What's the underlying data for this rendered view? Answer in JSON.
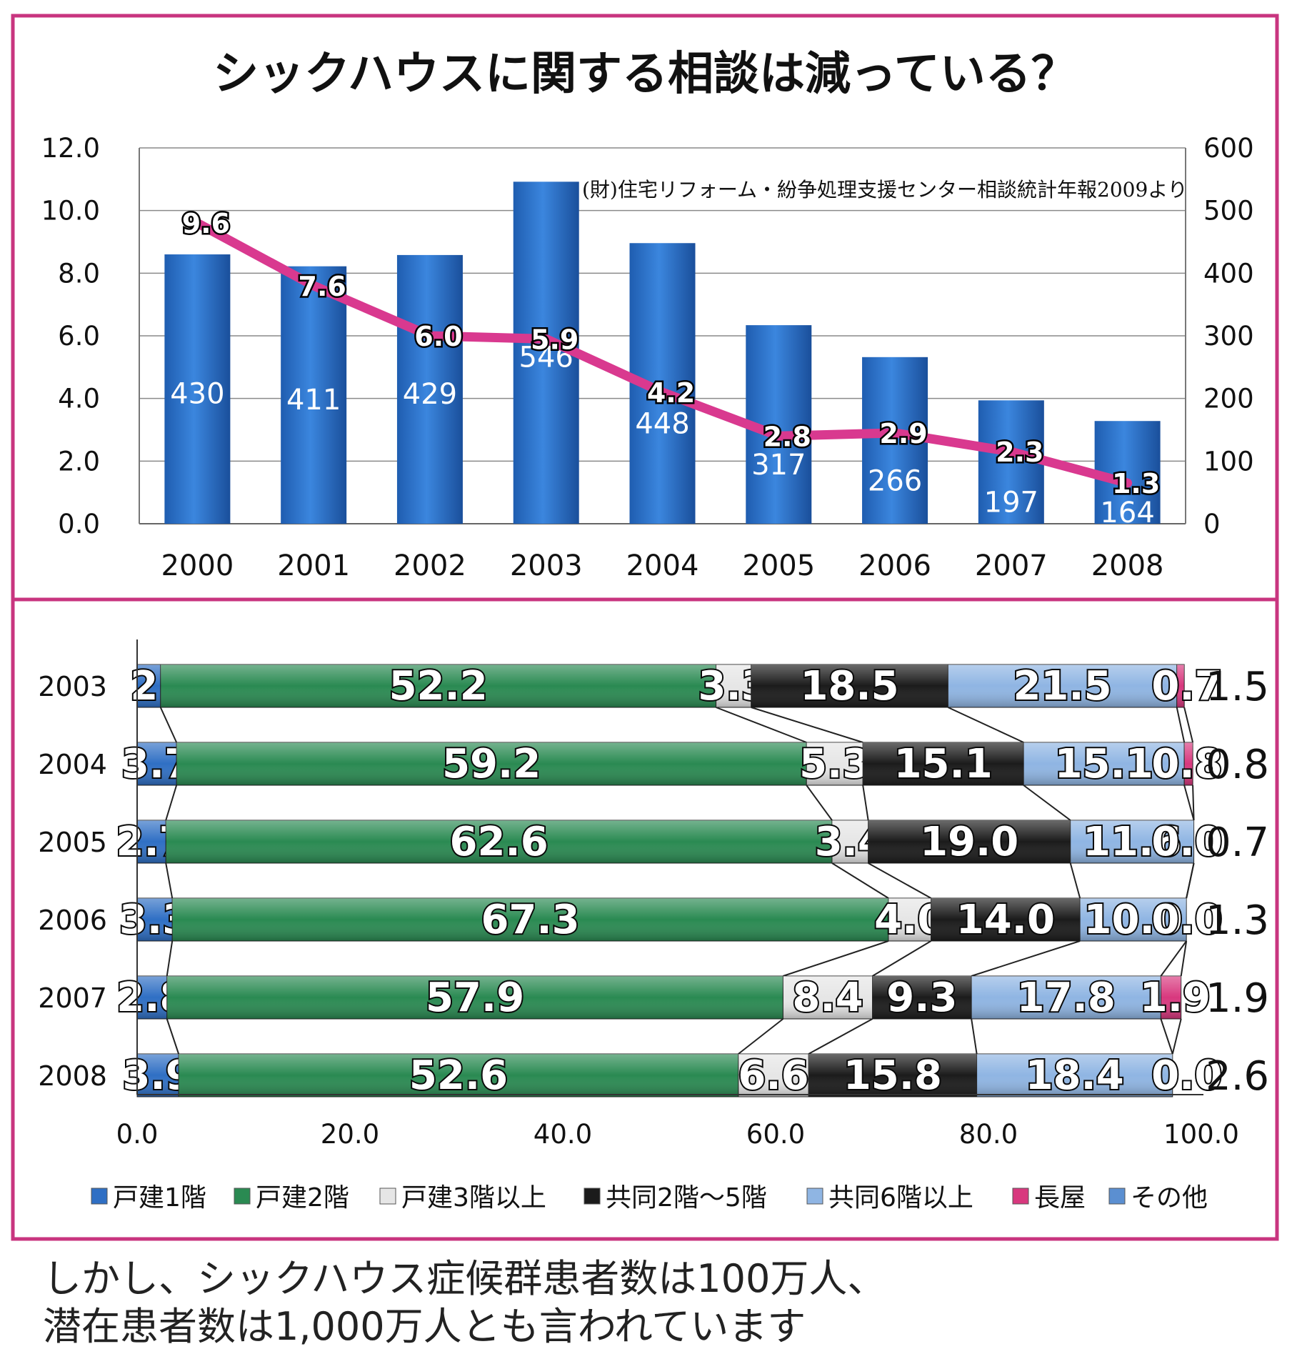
{
  "chart_data": [
    {
      "type": "bar",
      "title": "シックハウスに関する相談は減っている？",
      "annotation": "(財)住宅リフォーム・紛争処理支援センター相談統計年報2009より",
      "categories": [
        "2000",
        "2001",
        "2002",
        "2003",
        "2004",
        "2005",
        "2006",
        "2007",
        "2008"
      ],
      "series": [
        {
          "type": "bar",
          "axis": "right",
          "values": [
            430,
            411,
            429,
            546,
            448,
            317,
            266,
            197,
            164
          ],
          "labels": [
            "430",
            "411",
            "429",
            "546",
            "448",
            "317",
            "266",
            "197",
            "164"
          ],
          "color": "#2e72c8"
        },
        {
          "type": "line",
          "axis": "left",
          "values": [
            9.6,
            7.6,
            6.0,
            5.9,
            4.2,
            2.8,
            2.9,
            2.3,
            1.3
          ],
          "labels": [
            "9.6",
            "7.6",
            "6.0",
            "5.9",
            "4.2",
            "2.8",
            "2.9",
            "2.3",
            "1.3"
          ],
          "color": "#d9398f"
        }
      ],
      "ylim_left": [
        0,
        12
      ],
      "ylim_right": [
        0,
        600
      ],
      "yticks_left": [
        "0.0",
        "2.0",
        "4.0",
        "6.0",
        "8.0",
        "10.0",
        "12.0"
      ],
      "yticks_right": [
        "0",
        "100",
        "200",
        "300",
        "400",
        "500",
        "600"
      ],
      "grid": true
    },
    {
      "type": "bar",
      "orientation": "horizontal-stacked",
      "categories": [
        "2003",
        "2004",
        "2005",
        "2006",
        "2007",
        "2008"
      ],
      "series": [
        {
          "name": "戸建1階",
          "color": "#2f6fc4",
          "values": [
            2.2,
            3.7,
            2.7,
            3.3,
            2.8,
            3.9
          ],
          "labels": [
            "2.2",
            "3.7",
            "2.7",
            "3.3",
            "2.8",
            "3.9"
          ]
        },
        {
          "name": "戸建2階",
          "color": "#2a8a52",
          "values": [
            52.2,
            59.2,
            62.6,
            67.3,
            57.9,
            52.6
          ],
          "labels": [
            "52.2",
            "59.2",
            "62.6",
            "67.3",
            "57.9",
            "52.6"
          ]
        },
        {
          "name": "戸建3階以上",
          "color": "#e6e6e6",
          "values": [
            3.3,
            5.3,
            3.4,
            4.0,
            8.4,
            6.6
          ],
          "labels": [
            "3.3",
            "5.3",
            "3.4",
            "4.0",
            "8.4",
            "6.6"
          ]
        },
        {
          "name": "共同2階～5階",
          "color": "#1b1b1b",
          "values": [
            18.5,
            15.1,
            19.0,
            14.0,
            9.3,
            15.8
          ],
          "labels": [
            "18.5",
            "15.1",
            "19.0",
            "14.0",
            "9.3",
            "15.8"
          ]
        },
        {
          "name": "共同6階以上",
          "color": "#8fb5e3",
          "values": [
            21.5,
            15.1,
            11.6,
            10.0,
            17.8,
            18.4
          ],
          "labels": [
            "21.5",
            "15.1",
            "11.6",
            "10.0",
            "17.8",
            "18.4"
          ]
        },
        {
          "name": "長屋",
          "color": "#d8387e",
          "values": [
            0.7,
            0.8,
            0.0,
            0.0,
            1.9,
            0.0
          ],
          "labels": [
            "0.7",
            "0.8",
            "0.0",
            "0.0",
            "1.9",
            "0.0"
          ]
        },
        {
          "name": "その他",
          "color": "#5b8fd1",
          "values": [
            1.5,
            0.8,
            0.7,
            1.3,
            1.9,
            2.6
          ],
          "labels": [
            "1.5",
            "0.8",
            "0.7",
            "1.3",
            "1.9",
            "2.6"
          ]
        }
      ],
      "xlim": [
        0,
        100
      ],
      "xticks": [
        "0.0",
        "20.0",
        "40.0",
        "60.0",
        "80.0",
        "100.0"
      ],
      "legend": "bottom"
    }
  ],
  "caption": {
    "line1": "しかし、シックハウス症候群患者数は100万人、",
    "line2": "潜在患者数は1,000万人とも言われています"
  }
}
